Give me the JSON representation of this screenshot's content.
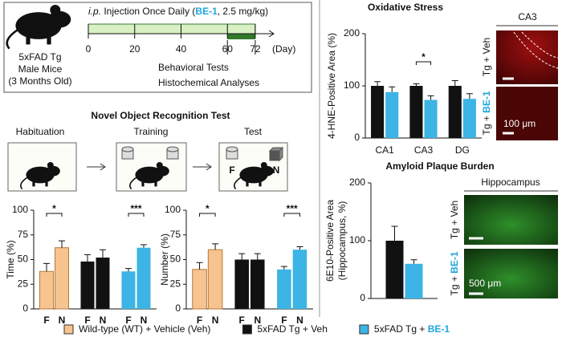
{
  "timeline": {
    "mouse_lines": [
      "5xFAD Tg",
      "Male Mice",
      "(3 Months Old)"
    ],
    "title_parts": [
      "i.p.",
      " Injection Once Daily (",
      "BE-1",
      ", 2.5 mg/kg)"
    ],
    "xlim": [
      0,
      80
    ],
    "ticks": [
      0,
      20,
      40,
      60,
      72
    ],
    "unit": "(Day)",
    "treatment": [
      0,
      72
    ],
    "behavior": [
      60,
      72
    ],
    "notes": [
      "Behavioral Tests",
      "Histochemical Analyses"
    ]
  },
  "nor": {
    "title": "Novel Object Recognition Test",
    "stages": [
      "Habituation",
      "Training",
      "Test"
    ],
    "objects": [
      "F",
      "N"
    ]
  },
  "chart_data": [
    {
      "type": "bar",
      "ylabel": "Time (%)",
      "categories": [
        "F",
        "N"
      ],
      "ylim": [
        0,
        100
      ],
      "yticks": [
        0,
        25,
        50,
        75,
        100
      ],
      "series": [
        {
          "color": "#f7c38e",
          "values": [
            38,
            62
          ],
          "errors": [
            8,
            7
          ]
        },
        {
          "color": "#111111",
          "values": [
            48,
            52
          ],
          "errors": [
            7,
            8
          ]
        },
        {
          "color": "#3cb4e5",
          "values": [
            38,
            62
          ],
          "errors": [
            3,
            3
          ]
        }
      ],
      "annotations": [
        "*",
        "***"
      ]
    },
    {
      "type": "bar",
      "ylabel": "Number (%)",
      "categories": [
        "F",
        "N"
      ],
      "ylim": [
        0,
        100
      ],
      "yticks": [
        0,
        25,
        50,
        75,
        100
      ],
      "series": [
        {
          "color": "#f7c38e",
          "values": [
            40,
            60
          ],
          "errors": [
            7,
            6
          ]
        },
        {
          "color": "#111111",
          "values": [
            50,
            50
          ],
          "errors": [
            6,
            6
          ]
        },
        {
          "color": "#3cb4e5",
          "values": [
            40,
            60
          ],
          "errors": [
            3,
            3
          ]
        }
      ],
      "annotations": [
        "*",
        "***"
      ]
    },
    {
      "type": "bar",
      "title": "Oxidative Stress",
      "ylabel": "4-HNE-Positive Area (%)",
      "categories": [
        "CA1",
        "CA3",
        "DG"
      ],
      "ylim": [
        0,
        200
      ],
      "yticks": [
        0,
        100,
        200
      ],
      "series": [
        {
          "color": "#111111",
          "values": [
            100,
            100,
            100
          ],
          "errors": [
            8,
            4,
            10
          ]
        },
        {
          "color": "#3cb4e5",
          "values": [
            88,
            73,
            75
          ],
          "errors": [
            10,
            8,
            10
          ]
        }
      ],
      "annotations": [
        "*"
      ]
    },
    {
      "type": "bar",
      "title": "Amyloid Plaque Burden",
      "ylabel": [
        "6E10-Positive Area",
        "(Hippocampus, %)"
      ],
      "ylim": [
        0,
        200
      ],
      "yticks": [
        0,
        100,
        200
      ],
      "series": [
        {
          "color": "#111111",
          "values": [
            100
          ],
          "errors": [
            25
          ]
        },
        {
          "color": "#3cb4e5",
          "values": [
            60
          ],
          "errors": [
            7
          ]
        }
      ]
    }
  ],
  "images": [
    {
      "title": "CA3",
      "rows": [
        [
          "Tg + Veh"
        ],
        [
          "Tg + ",
          "BE-1"
        ]
      ],
      "scale": "100 μm"
    },
    {
      "title": "Hippocampus",
      "rows": [
        [
          "Tg + Veh"
        ],
        [
          "Tg + ",
          "BE-1"
        ]
      ],
      "scale": "500 μm"
    }
  ],
  "legend": [
    {
      "parts": [
        "Wild-type (WT) + Vehicle (Veh)"
      ],
      "color": "#f7c38e"
    },
    {
      "parts": [
        "5xFAD Tg + Veh"
      ],
      "color": "#111111"
    },
    {
      "parts": [
        "5xFAD Tg + ",
        "BE-1"
      ],
      "color": "#3cb4e5"
    }
  ]
}
